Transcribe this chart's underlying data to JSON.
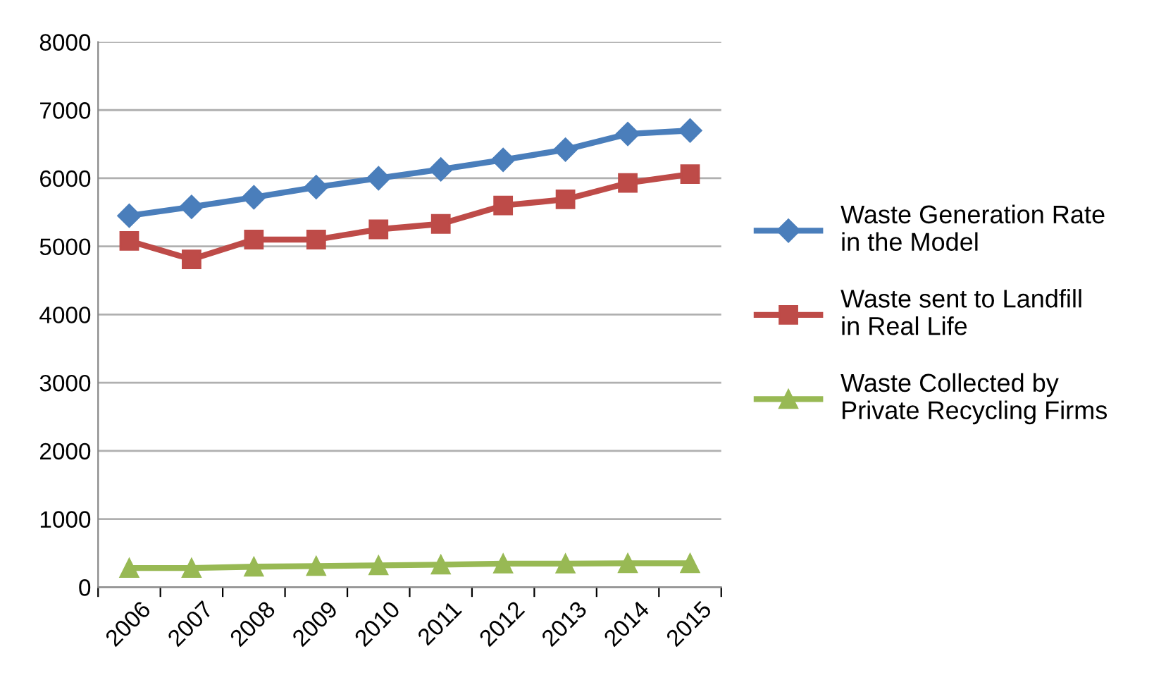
{
  "chart_data": {
    "type": "line",
    "categories": [
      "2006",
      "2007",
      "2008",
      "2009",
      "2010",
      "2011",
      "2012",
      "2013",
      "2014",
      "2015"
    ],
    "series": [
      {
        "name": "Waste Generation Rate in the Model",
        "color": "#4a7ebb",
        "marker": "diamond",
        "values": [
          5450,
          5580,
          5720,
          5870,
          6000,
          6130,
          6270,
          6420,
          6650,
          6700
        ]
      },
      {
        "name": "Waste sent to Landfill in Real Life",
        "color": "#be4b48",
        "marker": "square",
        "values": [
          5080,
          4810,
          5100,
          5100,
          5250,
          5330,
          5600,
          5690,
          5930,
          6060
        ]
      },
      {
        "name": "Waste Collected by Private Recycling Firms",
        "color": "#98b954",
        "marker": "triangle",
        "values": [
          280,
          280,
          300,
          310,
          320,
          330,
          345,
          345,
          350,
          350
        ]
      }
    ],
    "ylim": [
      0,
      8000
    ],
    "yticks": [
      0,
      1000,
      2000,
      3000,
      4000,
      5000,
      6000,
      7000,
      8000
    ],
    "grid": "y",
    "legend": "right"
  }
}
